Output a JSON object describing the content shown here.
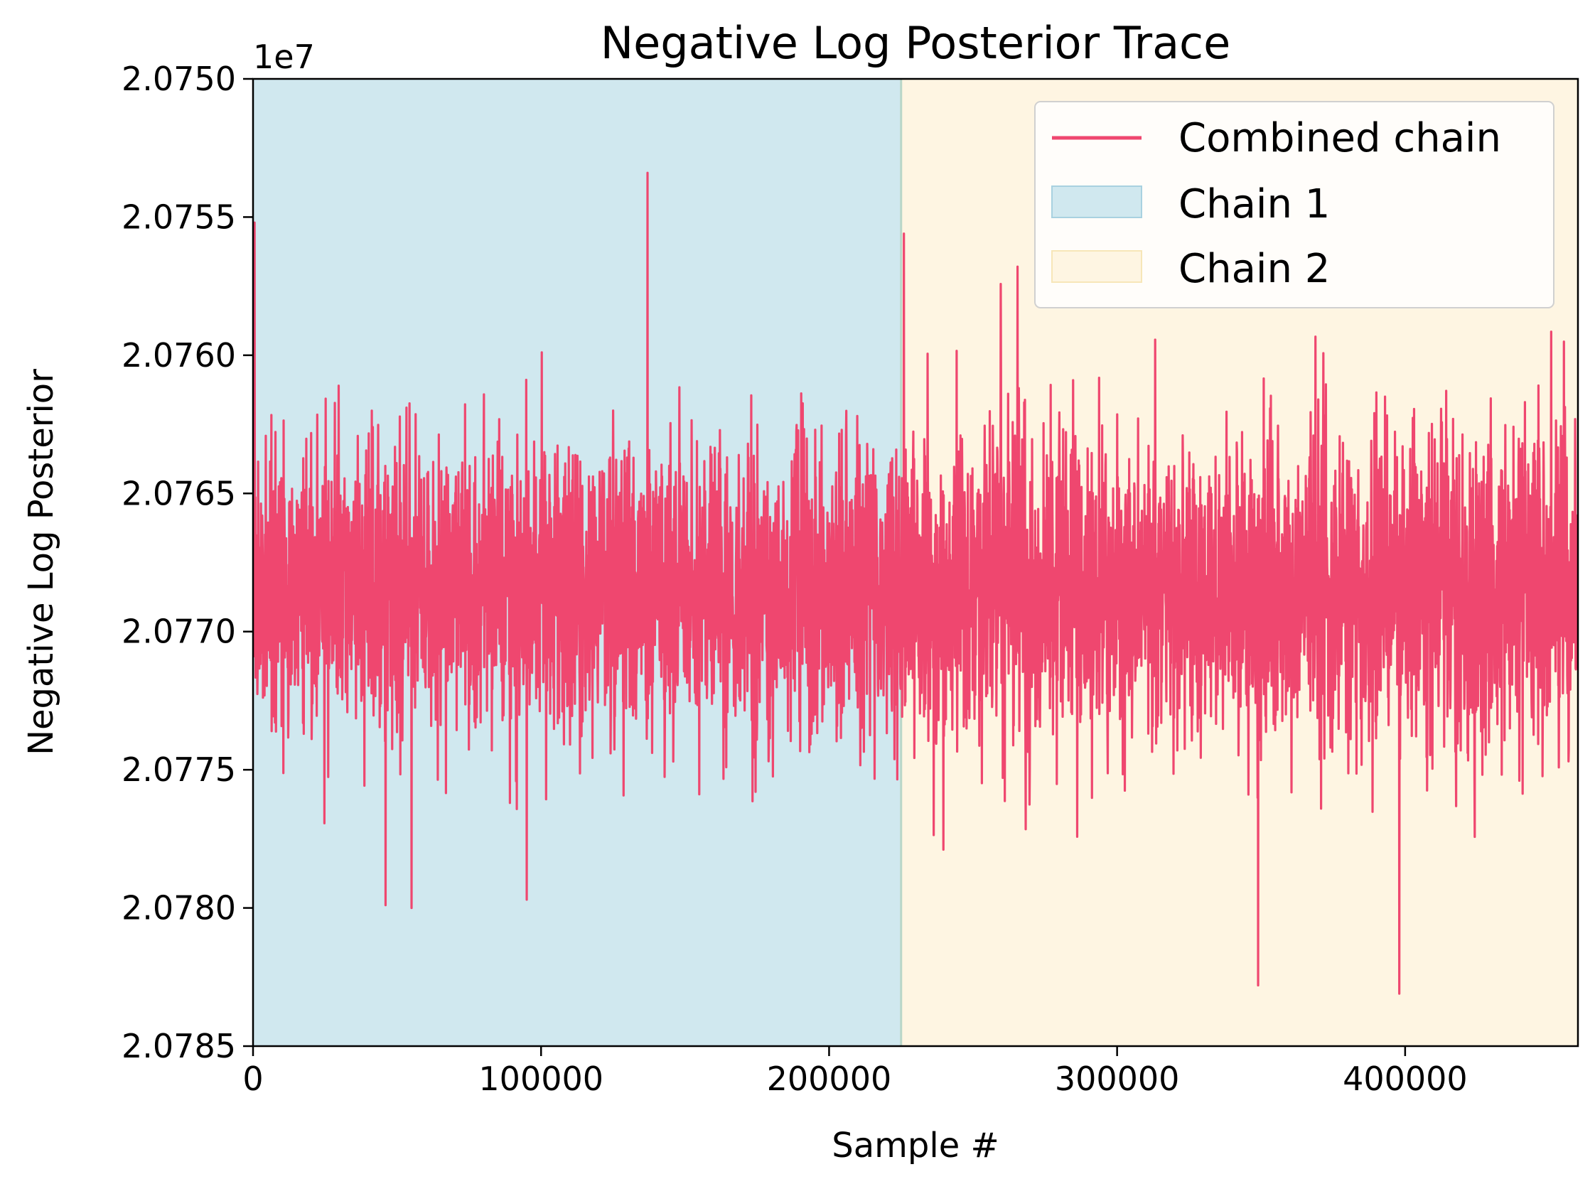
{
  "chart_data": {
    "type": "line",
    "title": "Negative Log Posterior Trace",
    "xlabel": "Sample #",
    "ylabel": "Negative Log Posterior",
    "y_offset_label": "1e7",
    "xlim": [
      0,
      460000
    ],
    "ylim": [
      2.0785,
      2.075
    ],
    "y_inverted": true,
    "x_ticks": [
      0,
      100000,
      200000,
      300000,
      400000
    ],
    "x_tick_labels": [
      "0",
      "100000",
      "200000",
      "300000",
      "400000"
    ],
    "y_ticks": [
      2.075,
      2.0755,
      2.076,
      2.0765,
      2.077,
      2.0775,
      2.078,
      2.0785
    ],
    "y_tick_labels": [
      "2.0750",
      "2.0755",
      "2.0760",
      "2.0765",
      "2.0770",
      "2.0775",
      "2.0780",
      "2.0785"
    ],
    "grid": false,
    "legend_position": "top-right",
    "regions": [
      {
        "name": "Chain 1",
        "x_start": 0,
        "x_end": 225000,
        "color": "#d0e8ef"
      },
      {
        "name": "Chain 2",
        "x_start": 225000,
        "x_end": 460000,
        "color": "#fef5e2"
      }
    ],
    "series": [
      {
        "name": "Combined chain",
        "color": "#ef476f",
        "center_value": 2.07685,
        "typical_range": [
          2.07735,
          2.07625
        ],
        "extreme_min": 2.07534,
        "extreme_max": 2.07831,
        "extremes": [
          {
            "x": 500,
            "y": 2.07552
          },
          {
            "x": 137000,
            "y": 2.07534
          },
          {
            "x": 226000,
            "y": 2.07556
          },
          {
            "x": 349000,
            "y": 2.07828
          },
          {
            "x": 398000,
            "y": 2.07831
          },
          {
            "x": 46000,
            "y": 2.07799
          },
          {
            "x": 55000,
            "y": 2.078
          },
          {
            "x": 95000,
            "y": 2.07797
          }
        ]
      }
    ]
  }
}
